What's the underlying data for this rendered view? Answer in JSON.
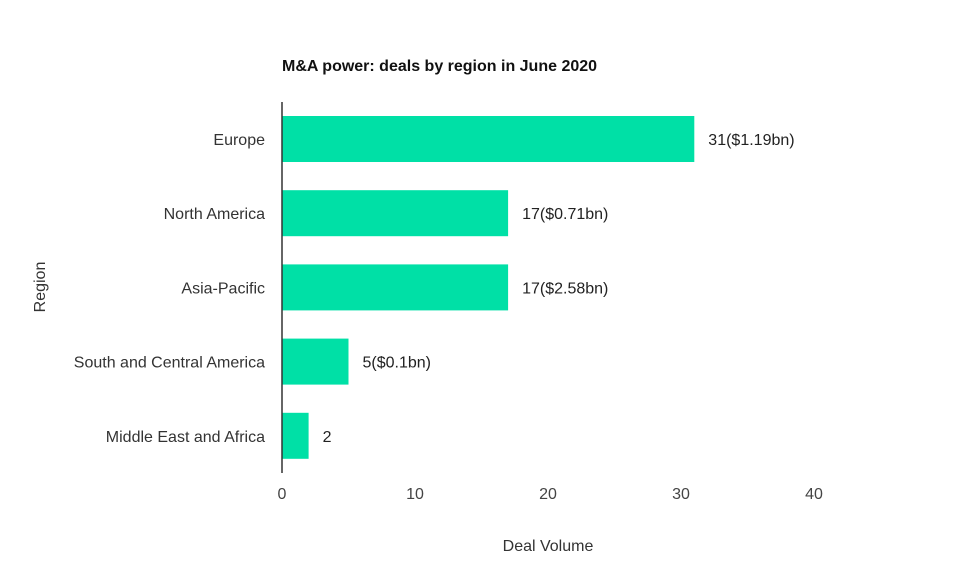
{
  "chart_data": {
    "type": "bar",
    "orientation": "horizontal",
    "title": "M&A power: deals by region in June 2020",
    "xlabel": "Deal Volume",
    "ylabel": "Region",
    "xlim": [
      0,
      40
    ],
    "xticks": [
      0,
      10,
      20,
      30,
      40
    ],
    "grid": false,
    "bar_color": "#00e0a6",
    "categories": [
      "Europe",
      "North America",
      "Asia-Pacific",
      "South and Central America",
      "Middle East and Africa"
    ],
    "values": [
      31,
      17,
      17,
      5,
      2
    ],
    "data_labels": [
      "31($1.19bn)",
      "17($0.71bn)",
      "17($2.58bn)",
      "5($0.1bn)",
      "2"
    ]
  }
}
